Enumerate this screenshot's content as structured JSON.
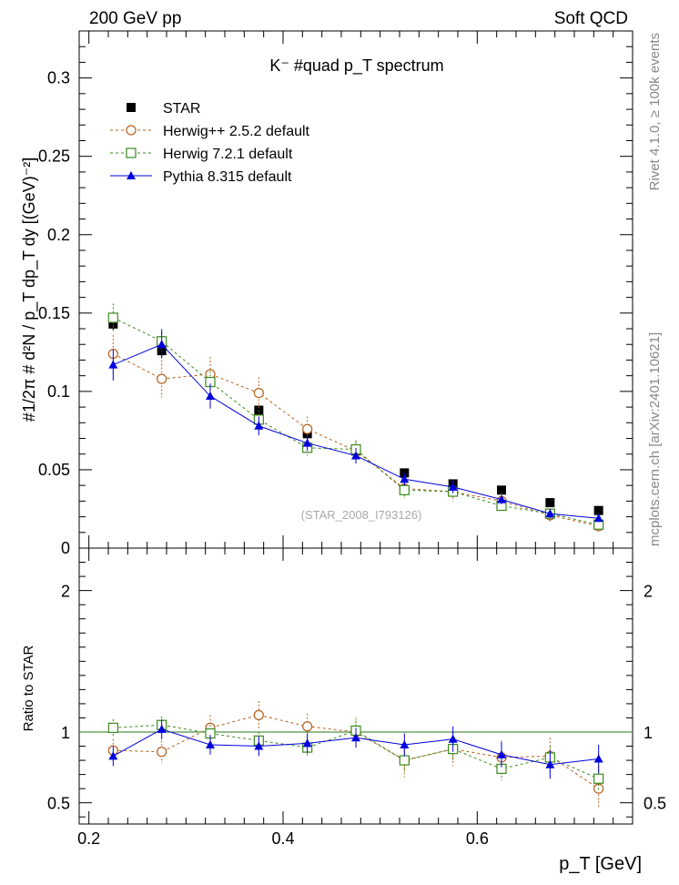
{
  "header": {
    "left": "200 GeV pp",
    "right": "Soft QCD"
  },
  "side_labels": {
    "rivet": "Rivet 4.1.0, ≥ 100k events",
    "mcplots": "mcplots.cern.ch [arXiv:2401.10621]"
  },
  "chart_data": [
    {
      "type": "line",
      "title": "K⁻ #quad p_T spectrum",
      "xlabel": "p_T [GeV]",
      "ylabel": "#1/2π # d²N / p_T dp_T dy [(GeV)⁻²]",
      "xlim": [
        0.19,
        0.76
      ],
      "ylim": [
        0,
        0.33
      ],
      "yticks": [
        0,
        0.05,
        0.1,
        0.15,
        0.2,
        0.25,
        0.3
      ],
      "ytick_labels": [
        "0",
        "0.05",
        "0.1",
        "0.15",
        "0.2",
        "0.25",
        "0.3"
      ],
      "watermark": "(STAR_2008_I793126)",
      "legend_position": "top-left",
      "x": [
        0.225,
        0.275,
        0.325,
        0.375,
        0.425,
        0.475,
        0.525,
        0.575,
        0.625,
        0.675,
        0.725
      ],
      "series": [
        {
          "name": "STAR",
          "color": "#000000",
          "marker": "square-filled",
          "values": [
            0.143,
            0.126,
            0.107,
            0.088,
            0.073,
            0.062,
            0.048,
            0.041,
            0.037,
            0.029,
            0.024
          ],
          "errors": [
            0.004,
            0.004,
            0.003,
            0.003,
            0.002,
            0.002,
            0.002,
            0.002,
            0.001,
            0.001,
            0.001
          ]
        },
        {
          "name": "Herwig++ 2.5.2 default",
          "color": "#b8601c",
          "marker": "circle-open",
          "dash": "dashed",
          "values": [
            0.124,
            0.108,
            0.111,
            0.099,
            0.076,
            0.062,
            0.038,
            0.036,
            0.03,
            0.021,
            0.014
          ],
          "errors": [
            0.012,
            0.012,
            0.011,
            0.01,
            0.008,
            0.007,
            0.006,
            0.006,
            0.005,
            0.004,
            0.003
          ]
        },
        {
          "name": "Herwig 7.2.1 default",
          "color": "#3a8a1a",
          "marker": "square-open",
          "dash": "dashed",
          "values": [
            0.147,
            0.132,
            0.106,
            0.082,
            0.064,
            0.063,
            0.037,
            0.036,
            0.027,
            0.022,
            0.015
          ],
          "errors": [
            0.009,
            0.008,
            0.007,
            0.006,
            0.005,
            0.005,
            0.004,
            0.003,
            0.003,
            0.002,
            0.002
          ]
        },
        {
          "name": "Pythia 8.315 default",
          "color": "#0000dd",
          "marker": "triangle-filled",
          "dash": "solid",
          "values": [
            0.117,
            0.13,
            0.097,
            0.078,
            0.067,
            0.059,
            0.044,
            0.039,
            0.031,
            0.022,
            0.019
          ],
          "errors": [
            0.01,
            0.009,
            0.008,
            0.006,
            0.005,
            0.005,
            0.004,
            0.004,
            0.003,
            0.003,
            0.002
          ]
        }
      ]
    },
    {
      "type": "line",
      "title": "",
      "xlabel": "p_T [GeV]",
      "ylabel": "Ratio to STAR",
      "xlim": [
        0.19,
        0.76
      ],
      "ylim": [
        0.35,
        2.3
      ],
      "yticks": [
        0.5,
        1,
        2
      ],
      "ytick_labels": [
        "0.5",
        "1",
        "2"
      ],
      "xticks": [
        0.2,
        0.4,
        0.6
      ],
      "xtick_labels": [
        "0.2",
        "0.4",
        "0.6"
      ],
      "reference_line": 1,
      "x": [
        0.225,
        0.275,
        0.325,
        0.375,
        0.425,
        0.475,
        0.525,
        0.575,
        0.625,
        0.675,
        0.725
      ],
      "series": [
        {
          "name": "Herwig++ 2.5.2 default",
          "color": "#b8601c",
          "marker": "circle-open",
          "dash": "dashed",
          "values": [
            0.87,
            0.86,
            1.03,
            1.12,
            1.04,
            1.0,
            0.8,
            0.88,
            0.82,
            0.83,
            0.6
          ],
          "errors": [
            0.08,
            0.08,
            0.09,
            0.1,
            0.09,
            0.1,
            0.12,
            0.12,
            0.12,
            0.13,
            0.14
          ]
        },
        {
          "name": "Herwig 7.2.1 default",
          "color": "#3a8a1a",
          "marker": "square-open",
          "dash": "dashed",
          "values": [
            1.03,
            1.05,
            0.99,
            0.94,
            0.89,
            1.01,
            0.8,
            0.88,
            0.74,
            0.82,
            0.67
          ],
          "errors": [
            0.06,
            0.06,
            0.06,
            0.06,
            0.06,
            0.07,
            0.08,
            0.08,
            0.08,
            0.08,
            0.09
          ]
        },
        {
          "name": "Pythia 8.315 default",
          "color": "#0000dd",
          "marker": "triangle-filled",
          "dash": "solid",
          "values": [
            0.83,
            1.02,
            0.91,
            0.9,
            0.92,
            0.96,
            0.91,
            0.95,
            0.84,
            0.77,
            0.81
          ],
          "errors": [
            0.07,
            0.07,
            0.07,
            0.07,
            0.07,
            0.07,
            0.08,
            0.09,
            0.09,
            0.1,
            0.1
          ]
        }
      ]
    }
  ]
}
